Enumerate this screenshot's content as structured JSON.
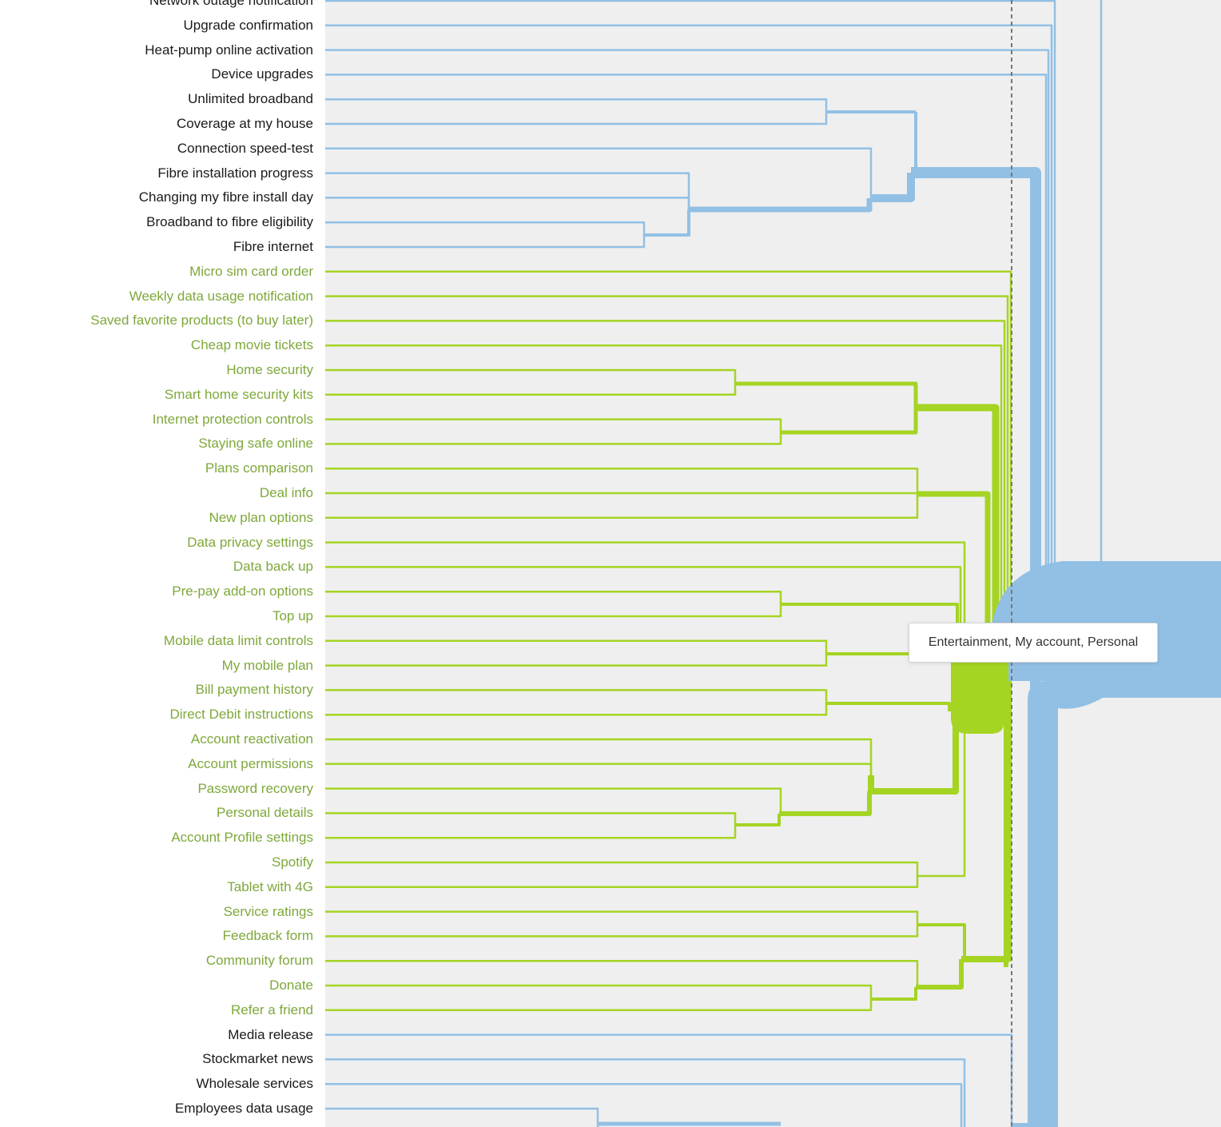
{
  "colors": {
    "blue": "#92c0e4",
    "green": "#a5d423",
    "green_text": "#7ea83a",
    "black_text": "#1a1a1a",
    "background": "#efefef",
    "dashed": "#777777"
  },
  "leaves": [
    {
      "label": "Network outage notification",
      "group": "blue"
    },
    {
      "label": "Upgrade confirmation",
      "group": "blue"
    },
    {
      "label": "Heat-pump online activation",
      "group": "blue"
    },
    {
      "label": "Device upgrades",
      "group": "blue"
    },
    {
      "label": "Unlimited broadband",
      "group": "blue"
    },
    {
      "label": "Coverage at my house",
      "group": "blue"
    },
    {
      "label": "Connection speed-test",
      "group": "blue"
    },
    {
      "label": "Fibre installation progress",
      "group": "blue"
    },
    {
      "label": "Changing my fibre install day",
      "group": "blue"
    },
    {
      "label": "Broadband to fibre eligibility",
      "group": "blue"
    },
    {
      "label": "Fibre internet",
      "group": "blue"
    },
    {
      "label": "Micro sim card order",
      "group": "green"
    },
    {
      "label": "Weekly data usage notification",
      "group": "green"
    },
    {
      "label": "Saved favorite products (to buy later)",
      "group": "green"
    },
    {
      "label": "Cheap movie tickets",
      "group": "green"
    },
    {
      "label": "Home security",
      "group": "green"
    },
    {
      "label": "Smart home security kits",
      "group": "green"
    },
    {
      "label": "Internet protection controls",
      "group": "green"
    },
    {
      "label": "Staying safe online",
      "group": "green"
    },
    {
      "label": "Plans comparison",
      "group": "green"
    },
    {
      "label": "Deal info",
      "group": "green"
    },
    {
      "label": "New plan options",
      "group": "green"
    },
    {
      "label": "Data privacy settings",
      "group": "green"
    },
    {
      "label": "Data back up",
      "group": "green"
    },
    {
      "label": "Pre-pay add-on options",
      "group": "green"
    },
    {
      "label": "Top up",
      "group": "green"
    },
    {
      "label": "Mobile data limit controls",
      "group": "green"
    },
    {
      "label": "My mobile plan",
      "group": "green"
    },
    {
      "label": "Bill payment history",
      "group": "green"
    },
    {
      "label": "Direct Debit instructions",
      "group": "green"
    },
    {
      "label": "Account reactivation",
      "group": "green"
    },
    {
      "label": "Account permissions",
      "group": "green"
    },
    {
      "label": "Password recovery",
      "group": "green"
    },
    {
      "label": "Personal details",
      "group": "green"
    },
    {
      "label": "Account Profile settings",
      "group": "green"
    },
    {
      "label": "Spotify",
      "group": "green"
    },
    {
      "label": "Tablet with 4G",
      "group": "green"
    },
    {
      "label": "Service ratings",
      "group": "green"
    },
    {
      "label": "Feedback form",
      "group": "green"
    },
    {
      "label": "Community forum",
      "group": "green"
    },
    {
      "label": "Donate",
      "group": "green"
    },
    {
      "label": "Refer a friend",
      "group": "green"
    },
    {
      "label": "Media release",
      "group": "blue"
    },
    {
      "label": "Stockmarket news",
      "group": "blue"
    },
    {
      "label": "Wholesale services",
      "group": "blue"
    },
    {
      "label": "Employees data usage",
      "group": "blue"
    }
  ],
  "tooltip": {
    "text": "Entertainment, My account, Personal"
  }
}
